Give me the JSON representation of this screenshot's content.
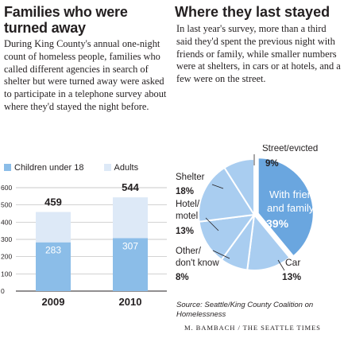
{
  "left": {
    "title": "Families who were turned away",
    "body": "During King County's annual one-night count of homeless people, families who called different agencies in search of shelter but were turned away were asked to participate in a telephone survey about where they'd stayed the night before."
  },
  "right": {
    "title": "Where they last stayed",
    "body": "In last year's survey, more than a third said they'd spent the previous night with friends or family, while smaller numbers were at shelters, in cars or at hotels, and a few were on the street."
  },
  "source": "Source: Seattle/King County Coalition on Homelessness",
  "credit": "M. Bambach / The Seattle Times",
  "colors": {
    "children": "#8bbde8",
    "adults": "#dde9f7",
    "pie_main": "#6aa6df",
    "pie_light": "#a9cdf0",
    "text": "#231f20"
  },
  "chart_data": [
    {
      "type": "bar",
      "stacked": true,
      "categories": [
        "2009",
        "2010"
      ],
      "series": [
        {
          "name": "Children under 18",
          "values": [
            283,
            307
          ]
        },
        {
          "name": "Adults",
          "values": [
            176,
            237
          ]
        }
      ],
      "totals": [
        459,
        544
      ],
      "yticks": [
        0,
        100,
        200,
        300,
        400,
        500,
        600
      ],
      "ylim": [
        0,
        600
      ],
      "grid": true,
      "legend": "top"
    },
    {
      "type": "pie",
      "slices": [
        {
          "label": "With friends and family",
          "value": 39
        },
        {
          "label": "Car",
          "value": 13
        },
        {
          "label": "Other/ don't know",
          "value": 8
        },
        {
          "label": "Hotel/ motel",
          "value": 13
        },
        {
          "label": "Shelter",
          "value": 18
        },
        {
          "label": "Street/evicted",
          "value": 9
        }
      ],
      "units": "%"
    }
  ]
}
